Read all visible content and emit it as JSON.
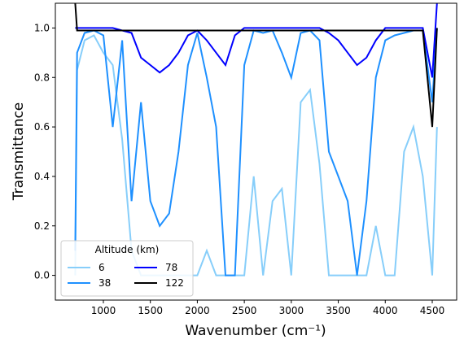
{
  "chart_data": {
    "type": "line",
    "xlabel": "Wavenumber (cm⁻¹)",
    "ylabel": "Transmittance",
    "legend_title": "Altitude (km)",
    "legend_loc": "lower left",
    "xlim": [
      489,
      4760
    ],
    "ylim": [
      -0.1,
      1.1
    ],
    "xticks": [
      1000,
      1500,
      2000,
      2500,
      3000,
      3500,
      4000,
      4500
    ],
    "yticks": [
      {
        "value": 0,
        "label": "0.0"
      },
      {
        "value": 0.2,
        "label": "0.2"
      },
      {
        "value": 0.4,
        "label": "0.4"
      },
      {
        "value": 0.6,
        "label": "0.6"
      },
      {
        "value": 0.8,
        "label": "0.8"
      },
      {
        "value": 1,
        "label": "1.0"
      }
    ],
    "x": [
      700,
      720,
      800,
      900,
      1000,
      1100,
      1200,
      1300,
      1400,
      1500,
      1600,
      1700,
      1800,
      1900,
      2000,
      2100,
      2200,
      2300,
      2400,
      2500,
      2600,
      2700,
      2800,
      2900,
      3000,
      3100,
      3200,
      3300,
      3400,
      3500,
      3600,
      3700,
      3800,
      3900,
      4000,
      4100,
      4200,
      4300,
      4400,
      4500,
      4550
    ],
    "series": [
      {
        "name": "6",
        "color": "#87cefa",
        "values": [
          0.0,
          0.83,
          0.95,
          0.97,
          0.9,
          0.85,
          0.55,
          0.1,
          0.0,
          0.0,
          0.0,
          0.0,
          0.0,
          0.0,
          0.0,
          0.1,
          0.0,
          0.0,
          0.0,
          0.0,
          0.4,
          0.0,
          0.3,
          0.35,
          0.0,
          0.7,
          0.75,
          0.45,
          0.0,
          0.0,
          0.0,
          0.0,
          0.0,
          0.2,
          0.0,
          0.0,
          0.5,
          0.6,
          0.4,
          0.0,
          0.6
        ]
      },
      {
        "name": "38",
        "color": "#1e90ff",
        "values": [
          0.1,
          0.9,
          0.98,
          0.99,
          0.97,
          0.6,
          0.95,
          0.3,
          0.7,
          0.3,
          0.2,
          0.25,
          0.5,
          0.85,
          0.98,
          0.8,
          0.6,
          0.0,
          0.0,
          0.85,
          0.99,
          0.98,
          0.99,
          0.9,
          0.8,
          0.98,
          0.99,
          0.95,
          0.5,
          0.4,
          0.3,
          0.0,
          0.3,
          0.8,
          0.95,
          0.97,
          0.98,
          0.99,
          0.99,
          0.7,
          1.0
        ]
      },
      {
        "name": "78",
        "color": "#0000ff",
        "values": [
          1.0,
          1.0,
          1.0,
          1.0,
          1.0,
          1.0,
          0.99,
          0.98,
          0.88,
          0.85,
          0.82,
          0.85,
          0.9,
          0.97,
          0.99,
          0.95,
          0.9,
          0.85,
          0.97,
          1.0,
          1.0,
          1.0,
          1.0,
          1.0,
          1.0,
          1.0,
          1.0,
          1.0,
          0.98,
          0.95,
          0.9,
          0.85,
          0.88,
          0.95,
          1.0,
          1.0,
          1.0,
          1.0,
          1.0,
          0.8,
          1.1
        ]
      },
      {
        "name": "122",
        "color": "#000000",
        "values": [
          1.1,
          0.99,
          0.99,
          0.99,
          0.99,
          0.99,
          0.99,
          0.99,
          0.99,
          0.99,
          0.99,
          0.99,
          0.99,
          0.99,
          0.99,
          0.99,
          0.99,
          0.99,
          0.99,
          0.99,
          0.99,
          0.99,
          0.99,
          0.99,
          0.99,
          0.99,
          0.99,
          0.99,
          0.99,
          0.99,
          0.99,
          0.99,
          0.99,
          0.99,
          0.99,
          0.99,
          0.99,
          0.99,
          0.99,
          0.6,
          1.0
        ]
      }
    ]
  }
}
